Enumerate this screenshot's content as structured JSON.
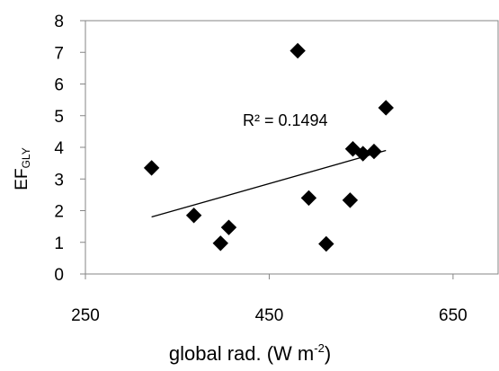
{
  "chart_data": {
    "type": "scatter",
    "title": "",
    "xlabel": "global rad. (W m",
    "xlabel_sup": "-2",
    "xlabel_tail": ")",
    "ylabel": "EF",
    "ylabel_sub": "GLY",
    "xlim": [
      250,
      700
    ],
    "ylim": [
      0,
      8
    ],
    "x_ticks": [
      250,
      450,
      650
    ],
    "y_ticks": [
      0,
      1,
      2,
      3,
      4,
      5,
      6,
      7,
      8
    ],
    "grid": false,
    "marker": "diamond",
    "marker_color": "#000000",
    "points": [
      {
        "x": 322,
        "y": 3.35
      },
      {
        "x": 368,
        "y": 1.85
      },
      {
        "x": 397,
        "y": 0.97
      },
      {
        "x": 406,
        "y": 1.47
      },
      {
        "x": 481,
        "y": 7.05
      },
      {
        "x": 493,
        "y": 2.4
      },
      {
        "x": 512,
        "y": 0.95
      },
      {
        "x": 538,
        "y": 2.33
      },
      {
        "x": 541,
        "y": 3.95
      },
      {
        "x": 552,
        "y": 3.8
      },
      {
        "x": 564,
        "y": 3.87
      },
      {
        "x": 577,
        "y": 5.25
      }
    ],
    "trendline": {
      "type": "linear",
      "x_start": 322,
      "y_start": 1.8,
      "x_end": 577,
      "y_end": 3.9
    },
    "annotation": "R² = 0.1494"
  }
}
